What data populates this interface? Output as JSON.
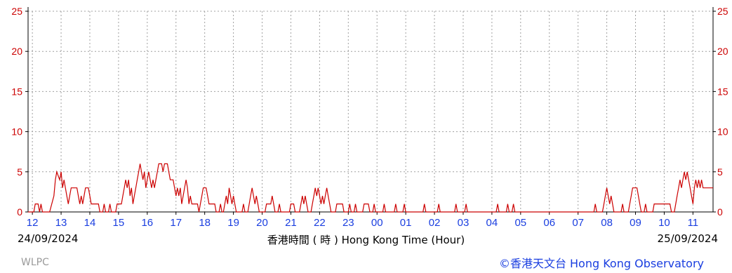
{
  "chart_data": {
    "type": "line",
    "date_start": "24/09/2024",
    "date_end": "25/09/2024",
    "xlabel": "香港時間 ( 時 ) Hong Kong Time (Hour)",
    "ylim": [
      0,
      25
    ],
    "yticks": [
      0,
      5,
      10,
      15,
      20,
      25
    ],
    "xtick_labels": [
      "12",
      "13",
      "14",
      "15",
      "16",
      "17",
      "18",
      "19",
      "20",
      "21",
      "22",
      "23",
      "00",
      "01",
      "02",
      "03",
      "04",
      "05",
      "06",
      "07",
      "08",
      "09",
      "10",
      "11"
    ],
    "x_range_hours": [
      11.85,
      35.7
    ],
    "grid": true,
    "series": [
      {
        "color": "#cc0000",
        "points": [
          [
            11.85,
            0
          ],
          [
            12.05,
            0
          ],
          [
            12.1,
            1
          ],
          [
            12.2,
            1
          ],
          [
            12.25,
            0
          ],
          [
            12.3,
            1
          ],
          [
            12.35,
            0
          ],
          [
            12.6,
            0
          ],
          [
            12.75,
            2
          ],
          [
            12.8,
            4
          ],
          [
            12.85,
            5
          ],
          [
            12.95,
            4
          ],
          [
            13.0,
            5
          ],
          [
            13.05,
            3
          ],
          [
            13.1,
            4
          ],
          [
            13.15,
            3
          ],
          [
            13.2,
            2
          ],
          [
            13.25,
            1
          ],
          [
            13.3,
            2
          ],
          [
            13.35,
            3
          ],
          [
            13.55,
            3
          ],
          [
            13.6,
            2
          ],
          [
            13.65,
            1
          ],
          [
            13.7,
            2
          ],
          [
            13.75,
            1
          ],
          [
            13.8,
            2
          ],
          [
            13.85,
            3
          ],
          [
            13.95,
            3
          ],
          [
            14.0,
            2
          ],
          [
            14.05,
            1
          ],
          [
            14.3,
            1
          ],
          [
            14.35,
            0
          ],
          [
            14.45,
            0
          ],
          [
            14.5,
            1
          ],
          [
            14.55,
            0
          ],
          [
            14.65,
            0
          ],
          [
            14.7,
            1
          ],
          [
            14.75,
            0
          ],
          [
            14.9,
            0
          ],
          [
            14.95,
            1
          ],
          [
            15.1,
            1
          ],
          [
            15.15,
            2
          ],
          [
            15.2,
            3
          ],
          [
            15.25,
            4
          ],
          [
            15.3,
            3
          ],
          [
            15.35,
            4
          ],
          [
            15.4,
            2
          ],
          [
            15.45,
            3
          ],
          [
            15.5,
            1
          ],
          [
            15.55,
            2
          ],
          [
            15.6,
            3
          ],
          [
            15.65,
            4
          ],
          [
            15.7,
            5
          ],
          [
            15.75,
            6
          ],
          [
            15.8,
            5
          ],
          [
            15.85,
            4
          ],
          [
            15.9,
            5
          ],
          [
            15.95,
            3
          ],
          [
            16.0,
            4
          ],
          [
            16.05,
            5
          ],
          [
            16.1,
            4
          ],
          [
            16.15,
            3
          ],
          [
            16.2,
            4
          ],
          [
            16.25,
            3
          ],
          [
            16.3,
            4
          ],
          [
            16.35,
            5
          ],
          [
            16.4,
            6
          ],
          [
            16.5,
            6
          ],
          [
            16.55,
            5
          ],
          [
            16.6,
            6
          ],
          [
            16.7,
            6
          ],
          [
            16.75,
            5
          ],
          [
            16.8,
            4
          ],
          [
            16.9,
            4
          ],
          [
            16.95,
            3
          ],
          [
            17.0,
            2
          ],
          [
            17.05,
            3
          ],
          [
            17.1,
            2
          ],
          [
            17.15,
            3
          ],
          [
            17.2,
            1
          ],
          [
            17.25,
            2
          ],
          [
            17.3,
            3
          ],
          [
            17.35,
            4
          ],
          [
            17.4,
            3
          ],
          [
            17.45,
            1
          ],
          [
            17.5,
            2
          ],
          [
            17.55,
            1
          ],
          [
            17.75,
            1
          ],
          [
            17.8,
            0
          ],
          [
            17.85,
            1
          ],
          [
            17.9,
            2
          ],
          [
            17.95,
            3
          ],
          [
            18.05,
            3
          ],
          [
            18.1,
            2
          ],
          [
            18.15,
            1
          ],
          [
            18.35,
            1
          ],
          [
            18.4,
            0
          ],
          [
            18.5,
            0
          ],
          [
            18.55,
            1
          ],
          [
            18.6,
            0
          ],
          [
            18.65,
            0
          ],
          [
            18.7,
            1
          ],
          [
            18.75,
            2
          ],
          [
            18.8,
            1
          ],
          [
            18.85,
            3
          ],
          [
            18.9,
            2
          ],
          [
            18.95,
            1
          ],
          [
            19.0,
            2
          ],
          [
            19.05,
            1
          ],
          [
            19.1,
            0
          ],
          [
            19.3,
            0
          ],
          [
            19.35,
            1
          ],
          [
            19.4,
            0
          ],
          [
            19.5,
            0
          ],
          [
            19.55,
            1
          ],
          [
            19.6,
            2
          ],
          [
            19.65,
            3
          ],
          [
            19.7,
            2
          ],
          [
            19.75,
            1
          ],
          [
            19.8,
            2
          ],
          [
            19.85,
            1
          ],
          [
            19.9,
            0
          ],
          [
            20.1,
            0
          ],
          [
            20.15,
            1
          ],
          [
            20.3,
            1
          ],
          [
            20.35,
            2
          ],
          [
            20.4,
            1
          ],
          [
            20.45,
            0
          ],
          [
            20.55,
            0
          ],
          [
            20.6,
            1
          ],
          [
            20.65,
            0
          ],
          [
            20.95,
            0
          ],
          [
            21.0,
            1
          ],
          [
            21.1,
            1
          ],
          [
            21.15,
            0
          ],
          [
            21.3,
            0
          ],
          [
            21.35,
            1
          ],
          [
            21.4,
            2
          ],
          [
            21.45,
            1
          ],
          [
            21.5,
            2
          ],
          [
            21.55,
            1
          ],
          [
            21.6,
            0
          ],
          [
            21.7,
            0
          ],
          [
            21.75,
            1
          ],
          [
            21.8,
            2
          ],
          [
            21.85,
            3
          ],
          [
            21.9,
            2
          ],
          [
            21.95,
            3
          ],
          [
            22.0,
            2
          ],
          [
            22.05,
            1
          ],
          [
            22.1,
            2
          ],
          [
            22.15,
            1
          ],
          [
            22.2,
            2
          ],
          [
            22.25,
            3
          ],
          [
            22.3,
            2
          ],
          [
            22.35,
            1
          ],
          [
            22.4,
            0
          ],
          [
            22.55,
            0
          ],
          [
            22.6,
            1
          ],
          [
            22.8,
            1
          ],
          [
            22.85,
            0
          ],
          [
            23.0,
            0
          ],
          [
            23.05,
            1
          ],
          [
            23.1,
            0
          ],
          [
            23.2,
            0
          ],
          [
            23.25,
            1
          ],
          [
            23.3,
            0
          ],
          [
            23.5,
            0
          ],
          [
            23.55,
            1
          ],
          [
            23.7,
            1
          ],
          [
            23.75,
            0
          ],
          [
            23.85,
            0
          ],
          [
            23.9,
            1
          ],
          [
            23.95,
            0
          ],
          [
            24.2,
            0
          ],
          [
            24.25,
            1
          ],
          [
            24.3,
            0
          ],
          [
            24.6,
            0
          ],
          [
            24.65,
            1
          ],
          [
            24.7,
            0
          ],
          [
            24.9,
            0
          ],
          [
            24.95,
            1
          ],
          [
            25.0,
            0
          ],
          [
            25.6,
            0
          ],
          [
            25.65,
            1
          ],
          [
            25.7,
            0
          ],
          [
            26.1,
            0
          ],
          [
            26.15,
            1
          ],
          [
            26.2,
            0
          ],
          [
            26.7,
            0
          ],
          [
            26.75,
            1
          ],
          [
            26.8,
            0
          ],
          [
            27.05,
            0
          ],
          [
            27.1,
            1
          ],
          [
            27.15,
            0
          ],
          [
            28.15,
            0
          ],
          [
            28.2,
            1
          ],
          [
            28.25,
            0
          ],
          [
            28.5,
            0
          ],
          [
            28.55,
            1
          ],
          [
            28.6,
            0
          ],
          [
            28.7,
            0
          ],
          [
            28.75,
            1
          ],
          [
            28.8,
            0
          ],
          [
            31.55,
            0
          ],
          [
            31.6,
            1
          ],
          [
            31.65,
            0
          ],
          [
            31.85,
            0
          ],
          [
            31.9,
            1
          ],
          [
            31.95,
            2
          ],
          [
            32.0,
            3
          ],
          [
            32.05,
            2
          ],
          [
            32.1,
            1
          ],
          [
            32.15,
            2
          ],
          [
            32.2,
            1
          ],
          [
            32.25,
            0
          ],
          [
            32.5,
            0
          ],
          [
            32.55,
            1
          ],
          [
            32.6,
            0
          ],
          [
            32.75,
            0
          ],
          [
            32.8,
            1
          ],
          [
            32.85,
            2
          ],
          [
            32.9,
            3
          ],
          [
            33.05,
            3
          ],
          [
            33.1,
            2
          ],
          [
            33.15,
            1
          ],
          [
            33.2,
            0
          ],
          [
            33.3,
            0
          ],
          [
            33.35,
            1
          ],
          [
            33.4,
            0
          ],
          [
            33.6,
            0
          ],
          [
            33.65,
            1
          ],
          [
            34.2,
            1
          ],
          [
            34.25,
            0
          ],
          [
            34.35,
            0
          ],
          [
            34.4,
            1
          ],
          [
            34.45,
            2
          ],
          [
            34.5,
            3
          ],
          [
            34.55,
            4
          ],
          [
            34.6,
            3
          ],
          [
            34.65,
            4
          ],
          [
            34.7,
            5
          ],
          [
            34.75,
            4
          ],
          [
            34.8,
            5
          ],
          [
            34.85,
            4
          ],
          [
            34.9,
            3
          ],
          [
            34.95,
            2
          ],
          [
            35.0,
            1
          ],
          [
            35.05,
            3
          ],
          [
            35.1,
            4
          ],
          [
            35.15,
            3
          ],
          [
            35.2,
            4
          ],
          [
            35.25,
            3
          ],
          [
            35.3,
            4
          ],
          [
            35.35,
            3
          ],
          [
            35.7,
            3
          ]
        ]
      }
    ],
    "colors": {
      "series": "#cc0000",
      "x_tick": "#1a3ee0",
      "y_tick": "#cc0000",
      "grid": "#a0a0a0",
      "axis": "#000000"
    }
  },
  "footer": {
    "station": "WLPC",
    "copyright": "©香港天文台 Hong Kong Observatory"
  }
}
